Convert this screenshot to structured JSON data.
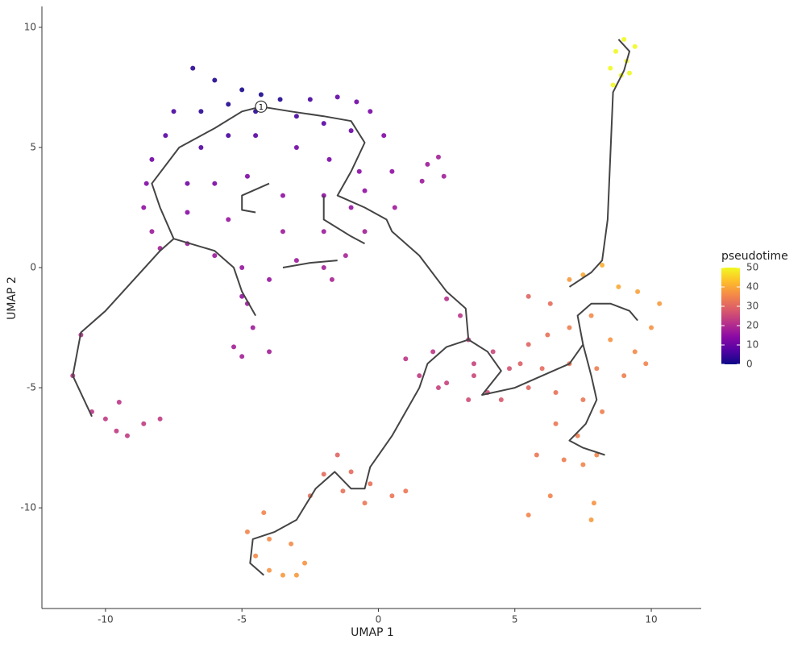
{
  "chart_data": {
    "type": "scatter",
    "xlabel": "UMAP 1",
    "ylabel": "UMAP 2",
    "xlim": [
      -12.33,
      11.83
    ],
    "ylim": [
      -14.19,
      10.87
    ],
    "xticks": [
      -10,
      -5,
      0,
      5,
      10
    ],
    "yticks": [
      -10,
      -5,
      0,
      5,
      10
    ],
    "grid": false,
    "legend_title": "pseudotime",
    "colorlim": [
      0,
      50
    ],
    "colorticks": [
      0,
      10,
      20,
      30,
      40,
      50
    ],
    "colormap": [
      "#0d0887",
      "#5302a3",
      "#8b0aa5",
      "#b83289",
      "#db5c68",
      "#f48849",
      "#febd2a",
      "#f0f921"
    ],
    "series": [
      {
        "x": [
          -6.8,
          -6,
          -5,
          -4.3,
          -3.6,
          -2.5,
          -1.5,
          -0.8,
          -0.3,
          0.2,
          0.5,
          0.6,
          -7.5,
          -7.8,
          -8.3,
          -8.5,
          -8.6,
          -8.3,
          -8,
          -7,
          -6,
          -5,
          -4,
          -3,
          -2,
          -1.7,
          -1.2,
          -0.5,
          -6.5,
          -5.5,
          -4.5,
          -3,
          -2,
          -1,
          -6.5,
          -5.5,
          -4.5,
          -3,
          -1.8,
          -0.7,
          -7,
          -6,
          -4.8,
          -3.5,
          -2,
          -1,
          -7,
          -5.5,
          -3.5,
          -2,
          -0.5,
          -4.8,
          -4.6,
          -5.3,
          -5,
          -4,
          -5,
          1.8,
          2.2,
          2.4,
          1.6,
          -10.9,
          -11.2,
          -10.5,
          -10,
          -9.6,
          -9.2,
          -9.5,
          -8.6,
          -8,
          2.5,
          3,
          3.3,
          2,
          1,
          1.5,
          2.5,
          3.5,
          3.3,
          4,
          4.2,
          3.5,
          4.8,
          4.5,
          2.2,
          5.5,
          6.3,
          7,
          7.5,
          8.2,
          8.8,
          9.5,
          10.3,
          10,
          9.4,
          8.5,
          7.8,
          7,
          6.2,
          5.5,
          6,
          7,
          8,
          9,
          9.8,
          5.5,
          6.5,
          7.5,
          8.2,
          6.5,
          7.3,
          8,
          6.8,
          7.5,
          5.8,
          5.5,
          6.3,
          7.8,
          7.9,
          5.2,
          8.6,
          8.5,
          8.7,
          9,
          9.4,
          9.1,
          8.9,
          9.2,
          -1.5,
          -1,
          -2,
          -0.3,
          0.5,
          -1.3,
          -2.5,
          -0.5,
          1,
          -4.2,
          -4.8,
          -4.5,
          -4,
          -3.5,
          -2.7,
          -3.2,
          -4,
          -3
        ],
        "y": [
          8.3,
          7.8,
          7.4,
          7.2,
          7.0,
          7.0,
          7.1,
          6.9,
          6.5,
          5.5,
          4,
          2.5,
          6.5,
          5.5,
          4.5,
          3.5,
          2.5,
          1.5,
          0.8,
          1,
          0.5,
          0,
          -0.5,
          0.3,
          0,
          -0.5,
          0.5,
          1.5,
          6.5,
          6.8,
          6.5,
          6.3,
          6,
          5.7,
          5,
          5.5,
          5.5,
          5,
          4.5,
          4,
          3.5,
          3.5,
          3.8,
          3,
          3,
          2.5,
          2.3,
          2,
          1.5,
          1.5,
          3.2,
          -1.5,
          -2.5,
          -3.3,
          -3.7,
          -3.5,
          -1.2,
          4.3,
          4.6,
          3.8,
          3.6,
          -2.8,
          -4.5,
          -6,
          -6.3,
          -6.8,
          -7,
          -5.6,
          -6.5,
          -6.3,
          -1.3,
          -2,
          -3,
          -3.5,
          -3.8,
          -4.5,
          -4.8,
          -4.5,
          -5.5,
          -5.2,
          -3.5,
          -4,
          -4.2,
          -5.5,
          -5,
          -1.2,
          -1.5,
          -0.5,
          -0.3,
          0.1,
          -0.8,
          -1,
          -1.5,
          -2.5,
          -3.5,
          -3,
          -2,
          -2.5,
          -2.8,
          -3.2,
          -4.2,
          -4,
          -4.2,
          -4.5,
          -4,
          -5,
          -5.2,
          -5.5,
          -6,
          -6.5,
          -7,
          -7.8,
          -8,
          -8.2,
          -7.8,
          -10.3,
          -9.5,
          -10.5,
          -9.8,
          -4,
          7.6,
          8.3,
          9,
          9.5,
          9.2,
          8.6,
          8,
          8.1,
          -7.8,
          -8.5,
          -8.6,
          -9,
          -9.5,
          -9.3,
          -9.5,
          -9.8,
          -9.3,
          -10.2,
          -11,
          -12,
          -12.6,
          -12.8,
          -12.3,
          -11.5,
          -11.3,
          -12.8
        ],
        "c": [
          3,
          2,
          1,
          1,
          2,
          6,
          9,
          11,
          12,
          13,
          15,
          17,
          6,
          8,
          11,
          13,
          15,
          17,
          18,
          17,
          17,
          16,
          16,
          17,
          18,
          19,
          19,
          18,
          3,
          2,
          3,
          6,
          8,
          10,
          7,
          6,
          8,
          11,
          12,
          14,
          11,
          12,
          13,
          15,
          15,
          16,
          14,
          16,
          17,
          17,
          15,
          17,
          17,
          18,
          18,
          18,
          16,
          17,
          18,
          18,
          17,
          21,
          22,
          22,
          23,
          23,
          23,
          22,
          23,
          23,
          21,
          22,
          23,
          22,
          22,
          23,
          24,
          25,
          26,
          26,
          25,
          24,
          27,
          28,
          24,
          30,
          31,
          38,
          40,
          41,
          40,
          39,
          38,
          37,
          36,
          37,
          36,
          34,
          32,
          30,
          31,
          33,
          34,
          34,
          35,
          30,
          32,
          33,
          34,
          33,
          34,
          35,
          34,
          35,
          33,
          35,
          35,
          38,
          37,
          29,
          50,
          50,
          50,
          50,
          50,
          50,
          50,
          50,
          30,
          31,
          31,
          32,
          33,
          32,
          32,
          33,
          33,
          35,
          35,
          36,
          37,
          38,
          37,
          36,
          36,
          38
        ]
      }
    ],
    "trajectory": {
      "x": [
        -10.5,
        -11.2,
        -10.9,
        -10,
        -8,
        -7.5,
        -8,
        -8.3,
        -7.3,
        -6,
        -5,
        -4.3,
        -3.2,
        -2,
        -1,
        -0.5,
        -1,
        -1.5,
        -0.5,
        0.3,
        0.5,
        1.5,
        2.5,
        3.2,
        3.3,
        2.5,
        1.8,
        1.5,
        0.5,
        -0.3,
        -0.5,
        -1,
        -1.6,
        -2.3,
        -3,
        -3.8,
        -4.6,
        -4.7,
        -4.2,
        null,
        3.3,
        4,
        4.5,
        3.8,
        5,
        6,
        7,
        7.5,
        7.3,
        7.8,
        8.5,
        9.2,
        9.5,
        null,
        7.5,
        7.8,
        8,
        7.6,
        7,
        7.5,
        8.3,
        null,
        7,
        7.8,
        8.2,
        8.4,
        8.6,
        9,
        9.2,
        8.8,
        null,
        -4.5,
        -5,
        -5.3,
        -6,
        -7.5,
        null,
        -4,
        -5,
        -5,
        -4.5,
        null,
        -2,
        -2,
        -1,
        -0.5,
        null,
        -3.5,
        -2.5,
        -1.5
      ],
      "y": [
        -6.2,
        -4.5,
        -2.7,
        -1.8,
        0.7,
        1.2,
        2.5,
        3.5,
        5,
        5.8,
        6.5,
        6.7,
        6.5,
        6.3,
        6.1,
        5.2,
        4,
        3,
        2.5,
        2,
        1.5,
        0.5,
        -1,
        -1.7,
        -3,
        -3.3,
        -4,
        -5,
        -7,
        -8.3,
        -9.2,
        -9.2,
        -8.5,
        -9.2,
        -10.5,
        -11,
        -11.3,
        -12.3,
        -12.8,
        null,
        -3,
        -3.5,
        -4.3,
        -5.3,
        -5,
        -4.5,
        -4,
        -3.2,
        -2,
        -1.5,
        -1.5,
        -1.8,
        -2.2,
        null,
        -3.2,
        -4.5,
        -5.5,
        -6.5,
        -7.2,
        -7.5,
        -7.8,
        null,
        -0.8,
        -0.2,
        0.3,
        2,
        7.3,
        8.2,
        9,
        9.5,
        null,
        -2,
        -1,
        0,
        0.7,
        1.2,
        null,
        3.5,
        3,
        2.4,
        2.3,
        null,
        3,
        2,
        1.3,
        1,
        null,
        0,
        0.2,
        0.3
      ]
    },
    "annotations": [
      {
        "text": "1",
        "x": -4.3,
        "y": 6.7
      }
    ]
  }
}
